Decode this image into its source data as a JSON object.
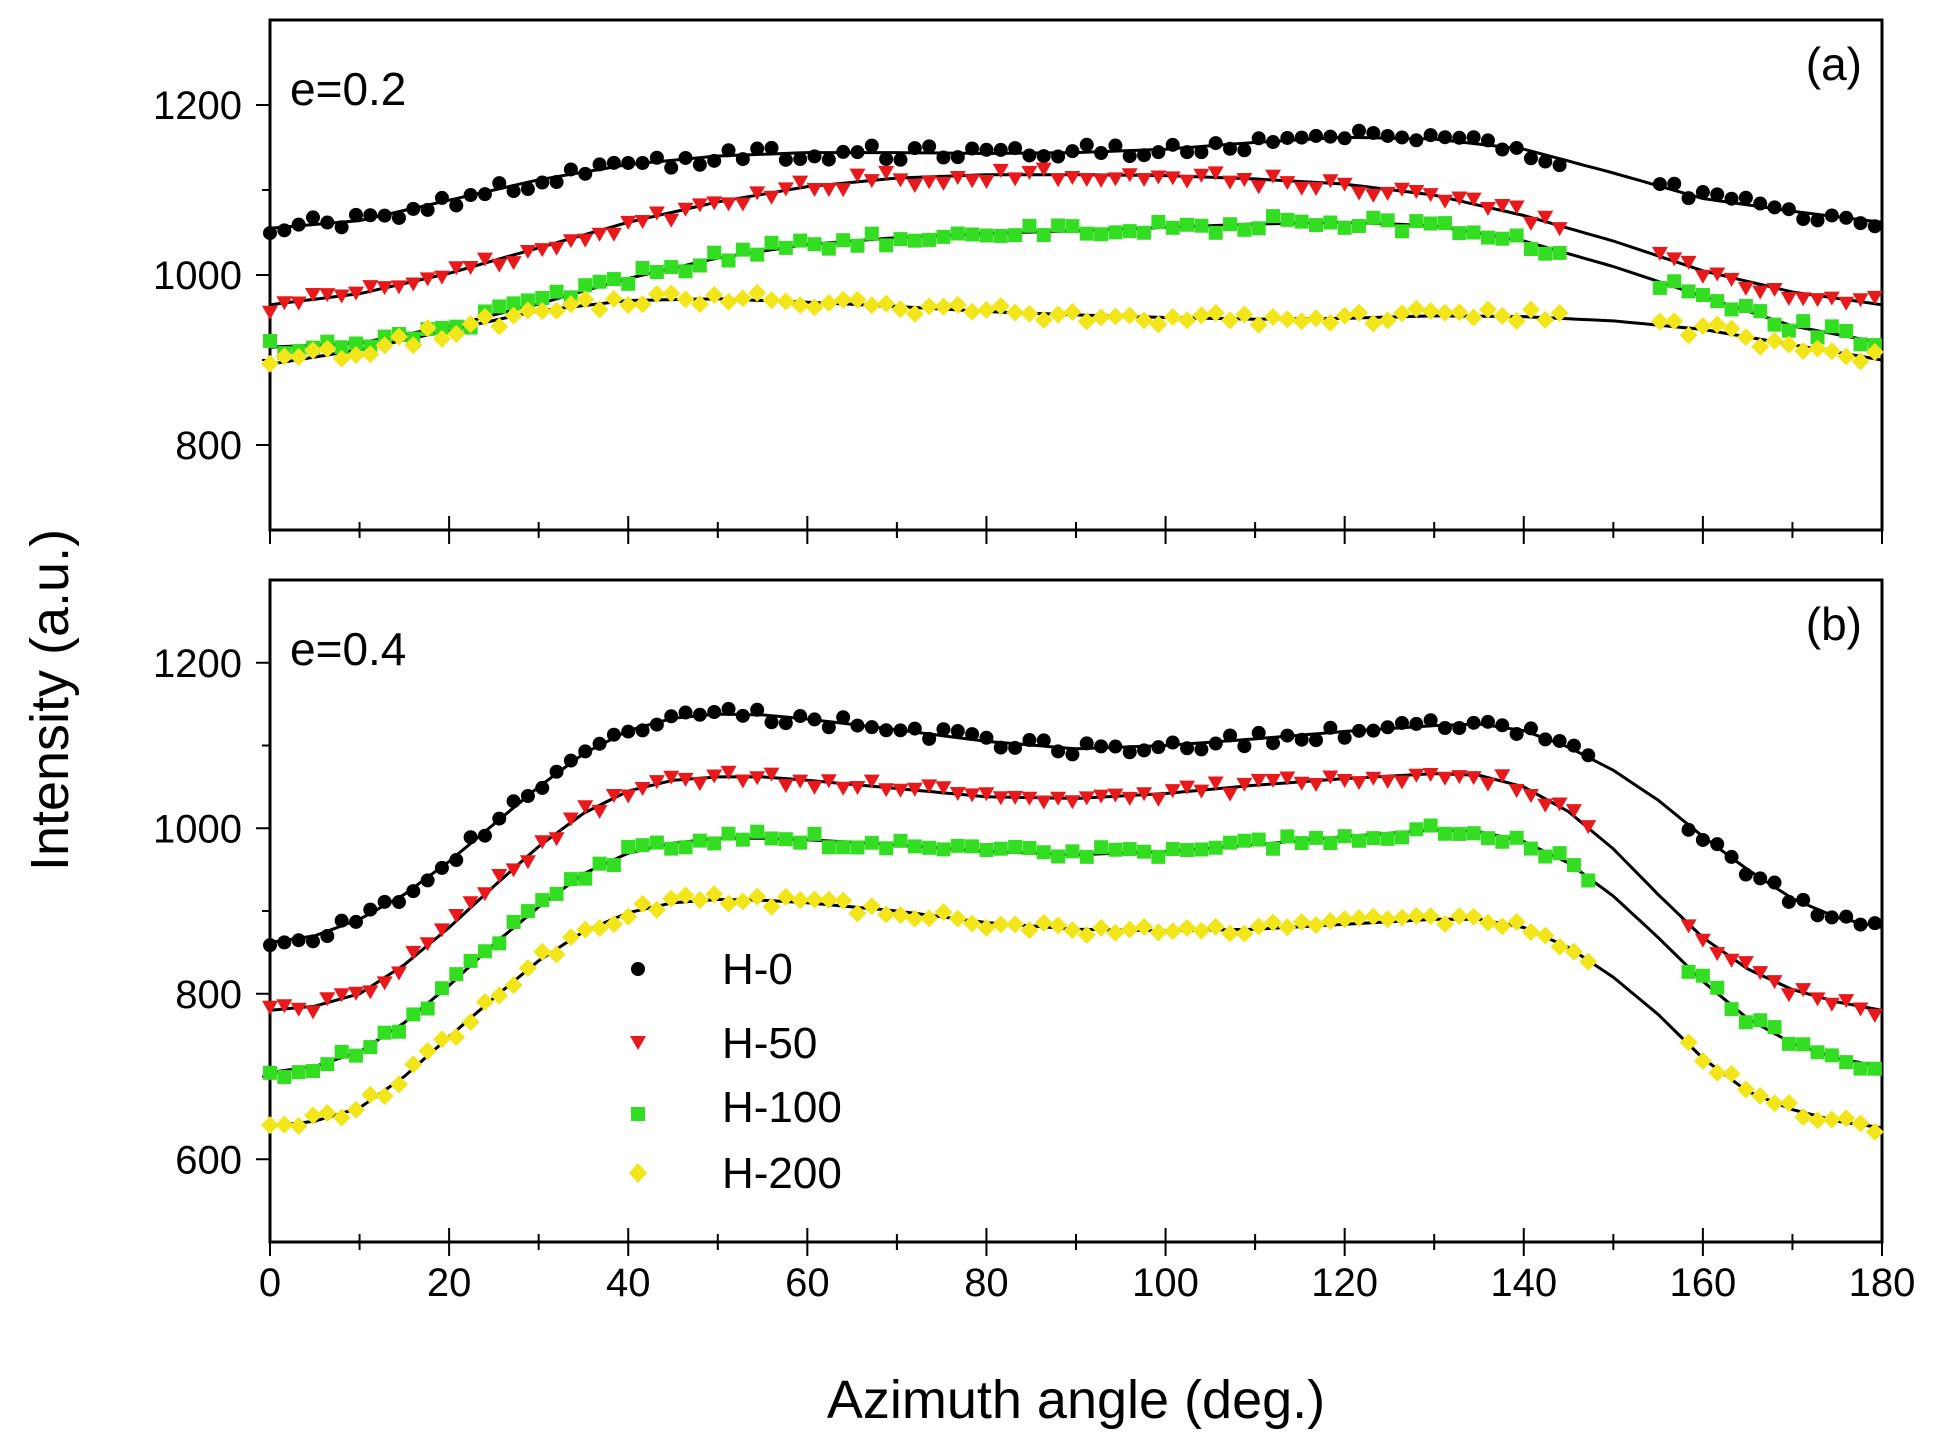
{
  "chart_data": [
    {
      "type": "scatter",
      "panel_label": "(a)",
      "annotation": "e=0.2",
      "xlabel": "Azimuth angle (deg.)",
      "ylabel": "Intensity (a.u.)",
      "xlim": [
        0,
        180
      ],
      "ylim": [
        700,
        1300
      ],
      "xticks": [
        0,
        20,
        40,
        60,
        80,
        100,
        120,
        140,
        160,
        180
      ],
      "yticks": [
        800,
        1000,
        1200
      ],
      "grid": false,
      "gaps": [
        [
          145,
          155
        ]
      ],
      "series": [
        {
          "name": "H-0",
          "color": "#000000",
          "marker": "circle",
          "fit": [
            [
              0,
              1055
            ],
            [
              10,
              1064
            ],
            [
              20,
              1088
            ],
            [
              30,
              1112
            ],
            [
              40,
              1130
            ],
            [
              50,
              1140
            ],
            [
              60,
              1144
            ],
            [
              70,
              1144
            ],
            [
              80,
              1143
            ],
            [
              90,
              1144
            ],
            [
              100,
              1148
            ],
            [
              110,
              1156
            ],
            [
              120,
              1162
            ],
            [
              130,
              1160
            ],
            [
              140,
              1148
            ],
            [
              150,
              1120
            ],
            [
              160,
              1090
            ],
            [
              170,
              1075
            ],
            [
              180,
              1062
            ]
          ]
        },
        {
          "name": "H-50",
          "color": "#e8191b",
          "marker": "triangle-down",
          "fit": [
            [
              0,
              965
            ],
            [
              10,
              978
            ],
            [
              20,
              1002
            ],
            [
              30,
              1032
            ],
            [
              40,
              1062
            ],
            [
              50,
              1086
            ],
            [
              60,
              1104
            ],
            [
              70,
              1114
            ],
            [
              80,
              1118
            ],
            [
              90,
              1118
            ],
            [
              100,
              1117
            ],
            [
              110,
              1113
            ],
            [
              120,
              1107
            ],
            [
              130,
              1094
            ],
            [
              140,
              1070
            ],
            [
              150,
              1040
            ],
            [
              160,
              1005
            ],
            [
              170,
              980
            ],
            [
              180,
              965
            ]
          ]
        },
        {
          "name": "H-100",
          "color": "#33dd22",
          "marker": "square",
          "fit": [
            [
              0,
              915
            ],
            [
              10,
              920
            ],
            [
              20,
              940
            ],
            [
              30,
              966
            ],
            [
              40,
              996
            ],
            [
              50,
              1020
            ],
            [
              60,
              1036
            ],
            [
              70,
              1044
            ],
            [
              80,
              1049
            ],
            [
              90,
              1052
            ],
            [
              100,
              1056
            ],
            [
              110,
              1060
            ],
            [
              120,
              1062
            ],
            [
              130,
              1058
            ],
            [
              140,
              1040
            ],
            [
              150,
              1010
            ],
            [
              160,
              975
            ],
            [
              170,
              940
            ],
            [
              180,
              920
            ]
          ]
        },
        {
          "name": "H-200",
          "color": "#f2e51a",
          "marker": "diamond",
          "fit": [
            [
              0,
              895
            ],
            [
              10,
              912
            ],
            [
              20,
              935
            ],
            [
              30,
              958
            ],
            [
              40,
              970
            ],
            [
              50,
              972
            ],
            [
              60,
              968
            ],
            [
              70,
              963
            ],
            [
              80,
              957
            ],
            [
              90,
              953
            ],
            [
              100,
              950
            ],
            [
              110,
              948
            ],
            [
              120,
              949
            ],
            [
              130,
              952
            ],
            [
              140,
              951
            ],
            [
              150,
              946
            ],
            [
              160,
              936
            ],
            [
              170,
              918
            ],
            [
              180,
              900
            ]
          ]
        }
      ]
    },
    {
      "type": "scatter",
      "panel_label": "(b)",
      "annotation": "e=0.4",
      "xlabel": "Azimuth angle (deg.)",
      "ylabel": "Intensity (a.u.)",
      "xlim": [
        0,
        180
      ],
      "ylim": [
        500,
        1300
      ],
      "xticks": [
        0,
        20,
        40,
        60,
        80,
        100,
        120,
        140,
        160,
        180
      ],
      "xticklabels": [
        "0",
        "20",
        "40",
        "60",
        "80",
        "100",
        "120",
        "140",
        "160",
        "180"
      ],
      "yticks": [
        600,
        800,
        1000,
        1200
      ],
      "grid": false,
      "gaps": [
        [
          148,
          157
        ]
      ],
      "legend_position": "lower-left",
      "series": [
        {
          "name": "H-0",
          "color": "#000000",
          "marker": "circle",
          "fit": [
            [
              0,
              862
            ],
            [
              5,
              870
            ],
            [
              10,
              890
            ],
            [
              15,
              920
            ],
            [
              20,
              960
            ],
            [
              25,
              1005
            ],
            [
              30,
              1050
            ],
            [
              35,
              1090
            ],
            [
              40,
              1118
            ],
            [
              45,
              1133
            ],
            [
              50,
              1138
            ],
            [
              55,
              1137
            ],
            [
              60,
              1132
            ],
            [
              70,
              1119
            ],
            [
              80,
              1105
            ],
            [
              90,
              1096
            ],
            [
              100,
              1100
            ],
            [
              110,
              1108
            ],
            [
              120,
              1117
            ],
            [
              130,
              1124
            ],
            [
              135,
              1126
            ],
            [
              140,
              1118
            ],
            [
              145,
              1098
            ],
            [
              150,
              1070
            ],
            [
              155,
              1034
            ],
            [
              160,
              990
            ],
            [
              165,
              950
            ],
            [
              170,
              915
            ],
            [
              175,
              892
            ],
            [
              180,
              880
            ]
          ]
        },
        {
          "name": "H-50",
          "color": "#e8191b",
          "marker": "triangle-down",
          "fit": [
            [
              0,
              780
            ],
            [
              5,
              785
            ],
            [
              10,
              800
            ],
            [
              15,
              835
            ],
            [
              20,
              880
            ],
            [
              25,
              930
            ],
            [
              30,
              978
            ],
            [
              35,
              1018
            ],
            [
              40,
              1045
            ],
            [
              45,
              1058
            ],
            [
              50,
              1062
            ],
            [
              55,
              1062
            ],
            [
              60,
              1058
            ],
            [
              70,
              1048
            ],
            [
              80,
              1038
            ],
            [
              90,
              1036
            ],
            [
              100,
              1042
            ],
            [
              110,
              1052
            ],
            [
              120,
              1060
            ],
            [
              130,
              1066
            ],
            [
              135,
              1064
            ],
            [
              140,
              1050
            ],
            [
              145,
              1020
            ],
            [
              150,
              975
            ],
            [
              155,
              920
            ],
            [
              160,
              868
            ],
            [
              165,
              830
            ],
            [
              170,
              805
            ],
            [
              175,
              790
            ],
            [
              180,
              780
            ]
          ]
        },
        {
          "name": "H-100",
          "color": "#33dd22",
          "marker": "square",
          "fit": [
            [
              0,
              705
            ],
            [
              5,
              712
            ],
            [
              10,
              730
            ],
            [
              15,
              765
            ],
            [
              20,
              810
            ],
            [
              25,
              860
            ],
            [
              30,
              905
            ],
            [
              35,
              945
            ],
            [
              40,
              970
            ],
            [
              45,
              982
            ],
            [
              50,
              988
            ],
            [
              55,
              988
            ],
            [
              60,
              986
            ],
            [
              70,
              980
            ],
            [
              80,
              972
            ],
            [
              90,
              968
            ],
            [
              100,
              972
            ],
            [
              110,
              980
            ],
            [
              120,
              990
            ],
            [
              130,
              998
            ],
            [
              135,
              996
            ],
            [
              140,
              984
            ],
            [
              145,
              958
            ],
            [
              150,
              918
            ],
            [
              155,
              868
            ],
            [
              160,
              815
            ],
            [
              165,
              770
            ],
            [
              170,
              740
            ],
            [
              175,
              722
            ],
            [
              180,
              712
            ]
          ]
        },
        {
          "name": "H-200",
          "color": "#f2e51a",
          "marker": "diamond",
          "fit": [
            [
              0,
              640
            ],
            [
              5,
              646
            ],
            [
              10,
              662
            ],
            [
              15,
              700
            ],
            [
              20,
              748
            ],
            [
              25,
              795
            ],
            [
              30,
              840
            ],
            [
              35,
              875
            ],
            [
              40,
              898
            ],
            [
              45,
              910
            ],
            [
              50,
              914
            ],
            [
              55,
              913
            ],
            [
              60,
              910
            ],
            [
              70,
              900
            ],
            [
              80,
              886
            ],
            [
              90,
              878
            ],
            [
              100,
              876
            ],
            [
              110,
              878
            ],
            [
              120,
              884
            ],
            [
              130,
              890
            ],
            [
              135,
              890
            ],
            [
              140,
              880
            ],
            [
              145,
              856
            ],
            [
              150,
              820
            ],
            [
              155,
              775
            ],
            [
              160,
              722
            ],
            [
              165,
              682
            ],
            [
              170,
              660
            ],
            [
              175,
              646
            ],
            [
              180,
              638
            ]
          ]
        }
      ]
    }
  ]
}
